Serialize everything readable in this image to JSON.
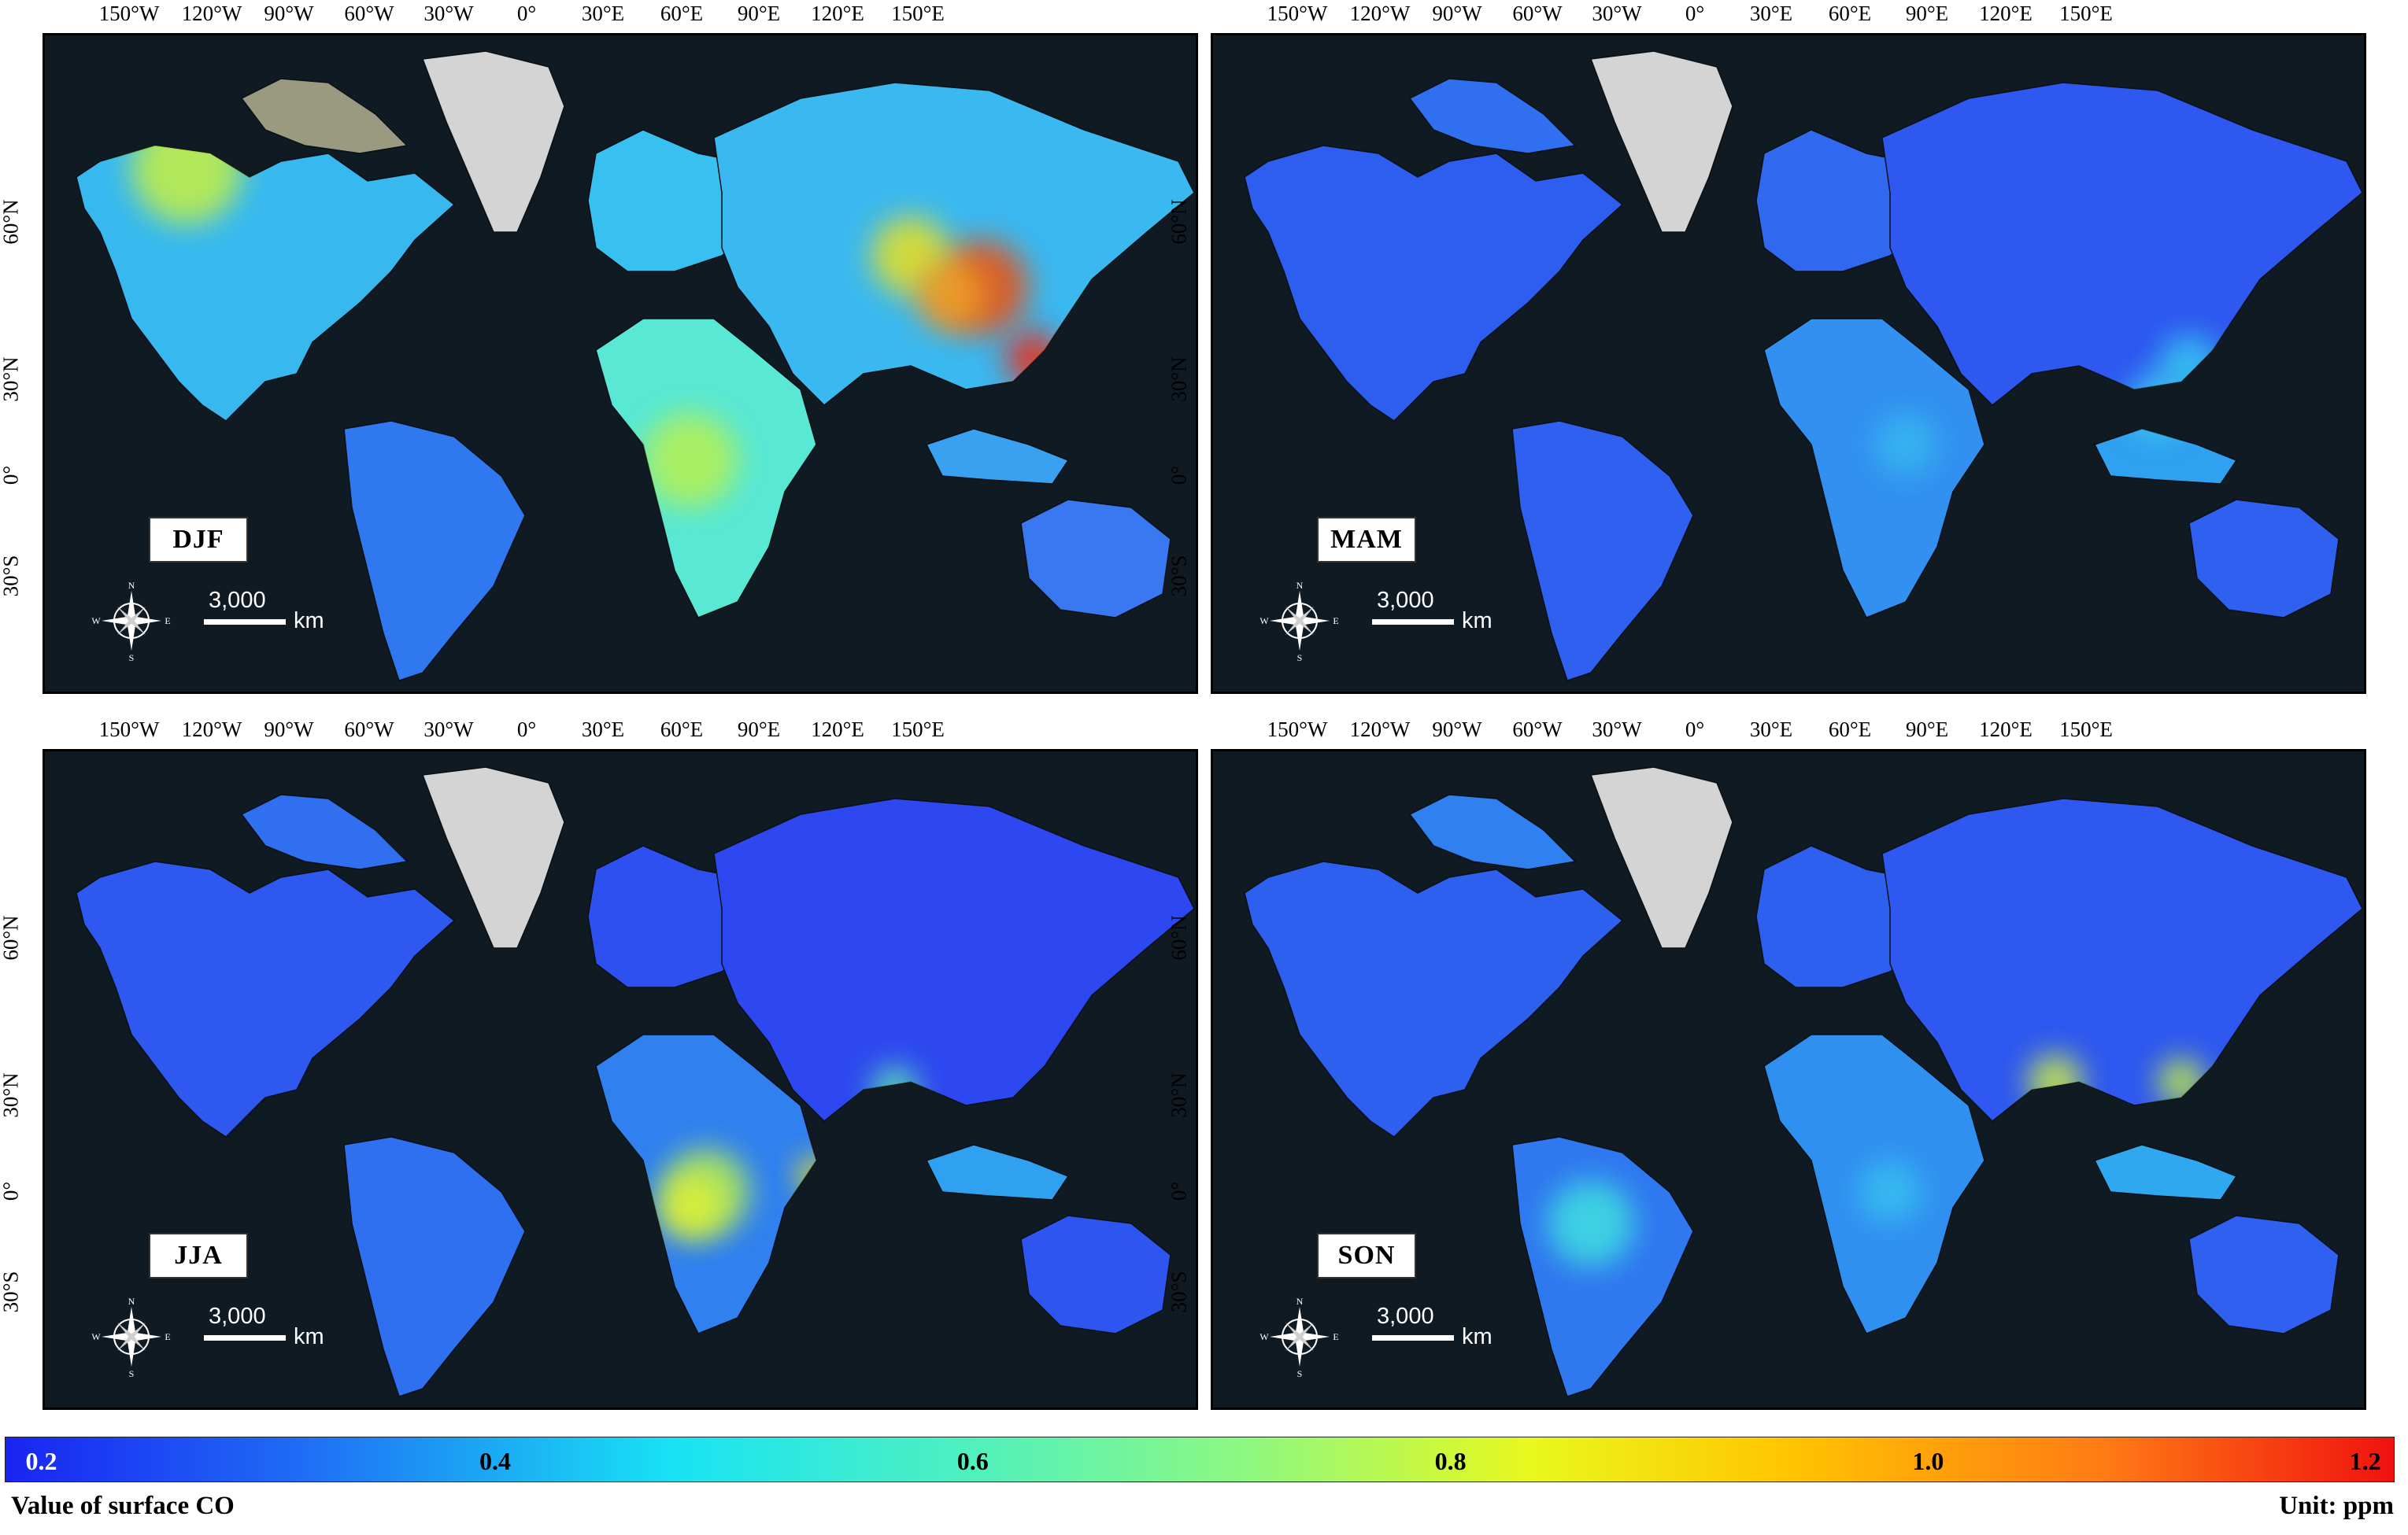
{
  "panels": [
    {
      "season": "DJF",
      "theme": "djf"
    },
    {
      "season": "MAM",
      "theme": "mam"
    },
    {
      "season": "JJA",
      "theme": "jja"
    },
    {
      "season": "SON",
      "theme": "son"
    }
  ],
  "lon_labels": [
    "150°W",
    "120°W",
    "90°W",
    "60°W",
    "30°W",
    "0°",
    "30°E",
    "60°E",
    "90°E",
    "120°E",
    "150°E"
  ],
  "lat_labels": [
    "60°N",
    "30°N",
    "0°",
    "30°S"
  ],
  "scale": {
    "value": "3,000",
    "unit": "km"
  },
  "compass": {
    "n": "N",
    "s": "S",
    "e": "E",
    "w": "W"
  },
  "colorbar": {
    "ticks": [
      "0.2",
      "0.4",
      "0.6",
      "0.8",
      "1.0",
      "1.2"
    ],
    "title": "Value of surface CO",
    "unit": "Unit: ppm",
    "colors": [
      "#1a24f2",
      "#1f6af5",
      "#18e3f4",
      "#8ef880",
      "#e9f81c",
      "#ffc800",
      "#ff7a14",
      "#f0120f"
    ]
  },
  "colors": {
    "ocean": "#0f1a22",
    "ice": "#d4d4d4",
    "land_low": "#2f5cf0",
    "land_mid": "#30c8f0",
    "land_high": "#d9f23a",
    "hotspot": "#f03010"
  }
}
